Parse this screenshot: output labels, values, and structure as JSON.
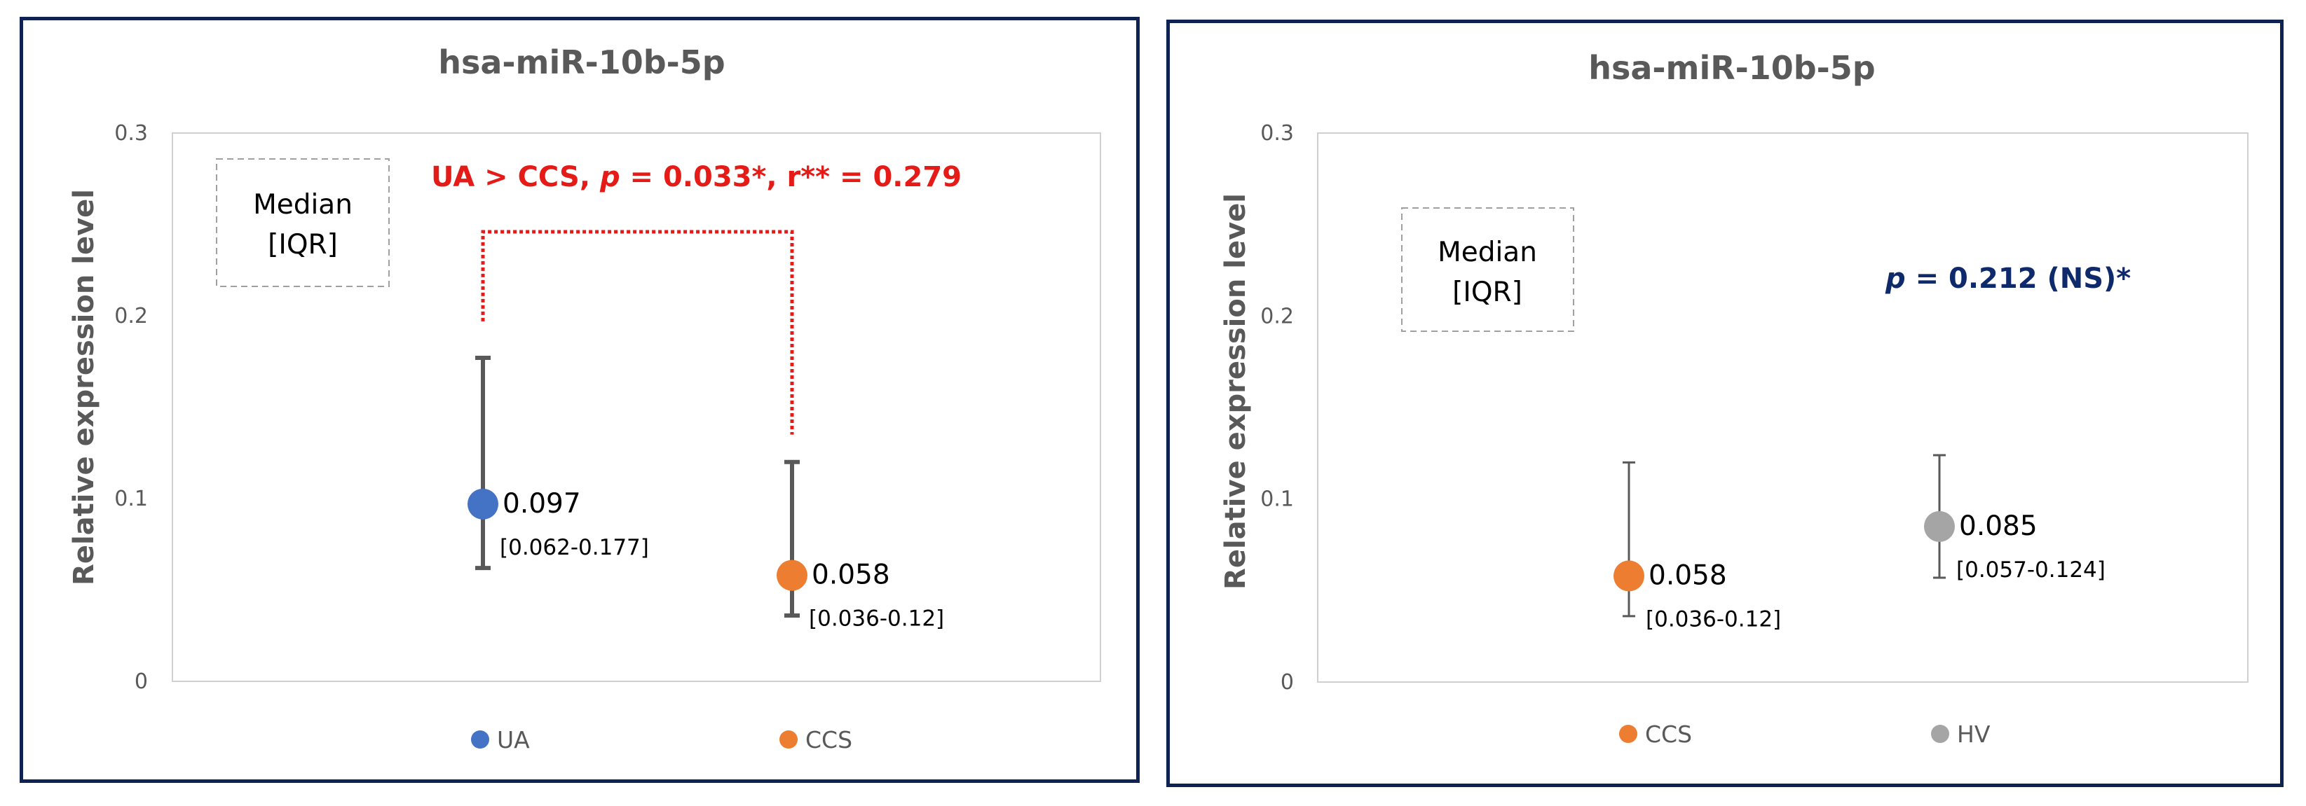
{
  "chart_data": [
    {
      "type": "scatter",
      "title": "hsa-miR-10b-5p",
      "ylabel": "Relative expression level",
      "ylim": [
        0,
        0.3
      ],
      "yticks": [
        "0",
        "0.1",
        "0.2",
        "0.3"
      ],
      "box_text": [
        "Median",
        "[IQR]"
      ],
      "categories": [
        "UA",
        "CCS"
      ],
      "series": [
        {
          "name": "UA",
          "color": "#4472c4",
          "median": 0.097,
          "iqr": [
            0.062,
            0.177
          ],
          "label": "0.097",
          "iqr_label": "[0.062-0.177]"
        },
        {
          "name": "CCS",
          "color": "#ed7d31",
          "median": 0.058,
          "iqr": [
            0.036,
            0.12
          ],
          "label": "0.058",
          "iqr_label": "[0.036-0.12]"
        }
      ],
      "annotation": {
        "prefix": "UA > CCS, ",
        "p": "p",
        "rest": " = 0.033*, r** = 0.279",
        "color": "#e41b17"
      },
      "bracket": {
        "left_start": 0.197,
        "right_start": 0.135,
        "top": 0.246
      },
      "legend": [
        "UA",
        "CCS"
      ]
    },
    {
      "type": "scatter",
      "title": "hsa-miR-10b-5p",
      "ylabel": "Relative expression level",
      "ylim": [
        0,
        0.3
      ],
      "yticks": [
        "0",
        "0.1",
        "0.2",
        "0.3"
      ],
      "box_text": [
        "Median",
        "[IQR]"
      ],
      "categories": [
        "CCS",
        "HV"
      ],
      "series": [
        {
          "name": "CCS",
          "color": "#ed7d31",
          "median": 0.058,
          "iqr": [
            0.036,
            0.12
          ],
          "label": "0.058",
          "iqr_label": "[0.036-0.12]"
        },
        {
          "name": "HV",
          "color": "#a5a5a5",
          "median": 0.085,
          "iqr": [
            0.057,
            0.124
          ],
          "label": "0.085",
          "iqr_label": "[0.057-0.124]"
        }
      ],
      "annotation": {
        "prefix": "",
        "p": "p",
        "rest": " = 0.212 (NS)*",
        "color": "#0f2a6b"
      },
      "legend": [
        "CCS",
        "HV"
      ]
    }
  ]
}
